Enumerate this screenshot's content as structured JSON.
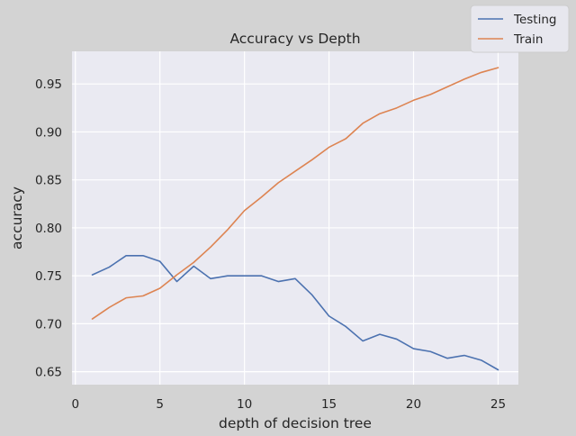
{
  "chart_data": {
    "type": "line",
    "title": "Accuracy vs Depth",
    "xlabel": "depth of decision tree",
    "ylabel": "accuracy",
    "xlim": [
      -0.2,
      26.2
    ],
    "ylim": [
      0.6365,
      0.984
    ],
    "xticks": [
      0,
      5,
      10,
      15,
      20,
      25
    ],
    "yticks": [
      0.65,
      0.7,
      0.75,
      0.8,
      0.85,
      0.9,
      0.95
    ],
    "xtick_labels": [
      "0",
      "5",
      "10",
      "15",
      "20",
      "25"
    ],
    "ytick_labels": [
      "0.65",
      "0.70",
      "0.75",
      "0.80",
      "0.85",
      "0.90",
      "0.95"
    ],
    "grid": true,
    "legend_position": "top-right",
    "x": [
      1,
      2,
      3,
      4,
      5,
      6,
      7,
      8,
      9,
      10,
      11,
      12,
      13,
      14,
      15,
      16,
      17,
      18,
      19,
      20,
      21,
      22,
      23,
      24,
      25
    ],
    "series": [
      {
        "name": "Testing",
        "color": "#4c72b0",
        "values": [
          0.751,
          0.759,
          0.771,
          0.771,
          0.765,
          0.744,
          0.76,
          0.747,
          0.75,
          0.75,
          0.75,
          0.744,
          0.747,
          0.73,
          0.708,
          0.697,
          0.682,
          0.689,
          0.684,
          0.674,
          0.671,
          0.664,
          0.667,
          0.662,
          0.652
        ]
      },
      {
        "name": "Train",
        "color": "#dd8452",
        "values": [
          0.705,
          0.717,
          0.727,
          0.729,
          0.737,
          0.751,
          0.764,
          0.78,
          0.798,
          0.818,
          0.832,
          0.847,
          0.859,
          0.871,
          0.884,
          0.893,
          0.909,
          0.919,
          0.925,
          0.933,
          0.939,
          0.947,
          0.955,
          0.962,
          0.967
        ]
      }
    ]
  }
}
